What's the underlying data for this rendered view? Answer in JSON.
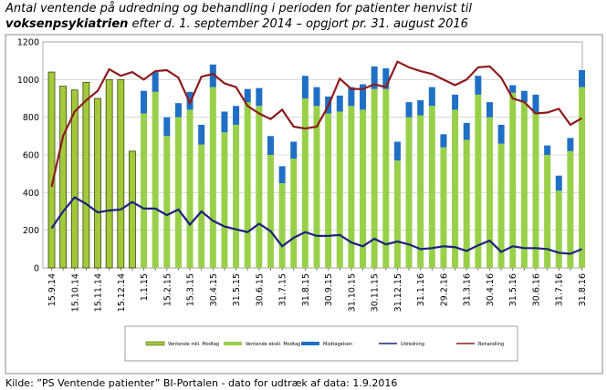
{
  "chart_data": {
    "type": "bar",
    "title_line1": "Antal ventende på udredning og behandling i perioden for patienter henvist til",
    "title_bold": "voksenpsykiatrien",
    "title_rest": " efter d. 1. september 2014 – opgjort pr. 31. august 2016",
    "source": "Kilde: ”PS Ventende patienter” BI-Portalen - dato for udtræk af data: 1.9.2016",
    "categories": [
      "15.9.14",
      null,
      "15.10.14",
      null,
      "15.11.14",
      null,
      "15.12.14",
      null,
      "1.1.15",
      null,
      "15.2.15",
      null,
      "15.3.15",
      null,
      "30.4.15",
      null,
      "31.5.15",
      null,
      "30.6.15",
      null,
      "31.7.15",
      null,
      "31.8.15",
      null,
      "30.9.15",
      null,
      "31.10.15",
      null,
      "30.11.15",
      null,
      "31.12.15",
      null,
      "31.1.16",
      null,
      "29.2.16",
      null,
      "31.3.16",
      null,
      "30.4.16",
      null,
      "31.5.16",
      null,
      "30.6.16",
      null,
      "31.7.16",
      null,
      "31.8.16"
    ],
    "ylim": [
      0,
      1200
    ],
    "yticks": [
      0,
      200,
      400,
      600,
      800,
      1000,
      1200
    ],
    "grid": true,
    "series": [
      {
        "name": "Ventende inkl. Modtag",
        "color": "#a3c93a",
        "kind": "bar",
        "values": [
          1040,
          965,
          945,
          985,
          900,
          1000,
          1000,
          620,
          null,
          null,
          null,
          null,
          null,
          null,
          null,
          null,
          null,
          null,
          null,
          null,
          null,
          null,
          null,
          null,
          null,
          null,
          null,
          null,
          null,
          null,
          null,
          null,
          null,
          null,
          null,
          null,
          null,
          null,
          null,
          null,
          null,
          null,
          null,
          null,
          null,
          null,
          null
        ]
      },
      {
        "name": "Ventende ekskl. Modtag",
        "color": "#99d04a",
        "kind": "stack",
        "values": [
          null,
          null,
          null,
          null,
          null,
          null,
          null,
          null,
          820,
          935,
          700,
          800,
          840,
          655,
          960,
          720,
          760,
          880,
          860,
          600,
          450,
          580,
          900,
          860,
          820,
          830,
          860,
          840,
          950,
          950,
          570,
          800,
          810,
          860,
          640,
          840,
          680,
          920,
          800,
          660,
          930,
          880,
          820,
          600,
          410,
          620,
          960
        ]
      },
      {
        "name": "Modtagelsen",
        "color": "#1f6fc4",
        "kind": "stack",
        "values": [
          null,
          null,
          null,
          null,
          null,
          null,
          null,
          null,
          120,
          105,
          100,
          75,
          95,
          105,
          120,
          110,
          100,
          70,
          95,
          100,
          90,
          90,
          120,
          100,
          90,
          85,
          100,
          135,
          120,
          110,
          100,
          80,
          80,
          100,
          70,
          80,
          90,
          100,
          80,
          100,
          40,
          60,
          100,
          50,
          80,
          70,
          90
        ]
      },
      {
        "name": "Udredning",
        "color": "#1c237a",
        "kind": "line",
        "values": [
          210,
          300,
          375,
          340,
          295,
          305,
          310,
          350,
          315,
          315,
          280,
          310,
          230,
          300,
          250,
          220,
          205,
          190,
          235,
          195,
          115,
          160,
          190,
          170,
          170,
          175,
          135,
          115,
          155,
          125,
          140,
          125,
          100,
          105,
          115,
          110,
          90,
          120,
          145,
          85,
          115,
          105,
          105,
          100,
          80,
          75,
          100
        ]
      },
      {
        "name": "Behandling",
        "color": "#8c1c1c",
        "kind": "line",
        "values": [
          430,
          700,
          830,
          890,
          940,
          1055,
          1020,
          1040,
          1000,
          1045,
          1050,
          1010,
          875,
          1015,
          1030,
          980,
          960,
          860,
          820,
          790,
          840,
          750,
          740,
          750,
          860,
          1005,
          950,
          950,
          975,
          960,
          1095,
          1065,
          1045,
          1030,
          1000,
          970,
          1000,
          1065,
          1070,
          1010,
          900,
          880,
          820,
          825,
          845,
          760,
          795
        ]
      }
    ]
  }
}
